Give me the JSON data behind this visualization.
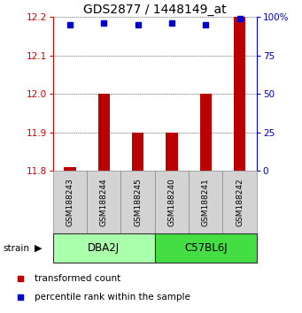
{
  "title": "GDS2877 / 1448149_at",
  "samples": [
    "GSM188243",
    "GSM188244",
    "GSM188245",
    "GSM188240",
    "GSM188241",
    "GSM188242"
  ],
  "transformed_counts": [
    11.808,
    12.0,
    11.9,
    11.9,
    12.0,
    12.2
  ],
  "percentile_ranks": [
    95,
    96,
    95,
    96,
    95,
    99
  ],
  "ylim_left": [
    11.8,
    12.2
  ],
  "ylim_right": [
    0,
    100
  ],
  "yticks_left": [
    11.8,
    11.9,
    12.0,
    12.1,
    12.2
  ],
  "yticks_right": [
    0,
    25,
    50,
    75,
    100
  ],
  "groups": [
    {
      "label": "DBA2J",
      "samples": [
        0,
        1,
        2
      ],
      "color": "#AAFFAA"
    },
    {
      "label": "C57BL6J",
      "samples": [
        3,
        4,
        5
      ],
      "color": "#44DD44"
    }
  ],
  "bar_color": "#BB0000",
  "dot_color": "#0000CC",
  "bar_bottom": 11.8,
  "background_color": "#ffffff",
  "left_axis_color": "#CC0000",
  "right_axis_color": "#0000BB",
  "title_fontsize": 10,
  "tick_fontsize": 7.5,
  "legend_fontsize": 7.5,
  "sample_box_color": "#D3D3D3",
  "bar_width": 0.35
}
